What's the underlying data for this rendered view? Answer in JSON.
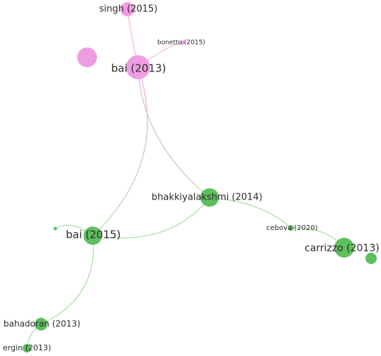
{
  "nodes": [
    {
      "label": "singh (2015)"
    },
    {
      "label": "bonetto (2015)"
    },
    {
      "label": "bai (2013)"
    },
    {
      "label": "bhakkiyalakshmi (2014)"
    },
    {
      "label": "cebova (2020)"
    },
    {
      "label": "carrizzo (2013)"
    },
    {
      "label": "bai (2015)"
    },
    {
      "label": "bahadoran (2013)"
    },
    {
      "label": "ergin (2013)"
    }
  ]
}
